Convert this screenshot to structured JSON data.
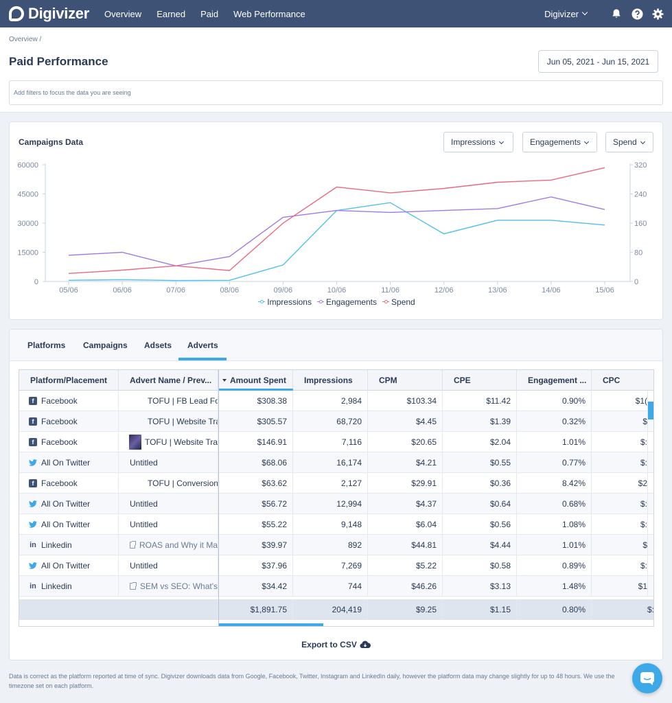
{
  "nav": {
    "brand": "Digivizer",
    "links": [
      "Overview",
      "Earned",
      "Paid",
      "Web Performance"
    ],
    "account": "Digivizer"
  },
  "header": {
    "breadcrumb": "Overview  /",
    "title": "Paid Performance",
    "date_range": "Jun 05, 2021 - Jun 15, 2021",
    "filter_placeholder": "Add filters to focus the data you are seeing"
  },
  "chart_panel": {
    "title": "Campaigns Data",
    "buttons": [
      "Impressions",
      "Engagements",
      "Spend"
    ]
  },
  "colors": {
    "impressions": "#4fc0ea",
    "engagements": "#a07ae6",
    "spend": "#ea6a7e",
    "accent": "#3ea9e8",
    "nav": "#3e5276"
  },
  "chart_data": {
    "type": "line",
    "x": [
      "05/06",
      "06/06",
      "07/06",
      "08/06",
      "09/06",
      "10/06",
      "11/06",
      "12/06",
      "13/06",
      "14/06",
      "15/06"
    ],
    "y_left_ticks": [
      "60000",
      "45000",
      "30000",
      "15000",
      "0"
    ],
    "y_right_ticks": [
      "320",
      "240",
      "160",
      "80",
      "0"
    ],
    "ylim_left": [
      0,
      60000
    ],
    "ylim_right": [
      0,
      320
    ],
    "series": [
      {
        "name": "Impressions",
        "axis": "left",
        "values": [
          600,
          900,
          500,
          600,
          8500,
          36500,
          40500,
          24500,
          31500,
          31500,
          29000
        ]
      },
      {
        "name": "Engagements",
        "axis": "left",
        "values": [
          13500,
          15000,
          8000,
          12800,
          33000,
          36500,
          35500,
          36500,
          37500,
          43500,
          37000
        ]
      },
      {
        "name": "Spend",
        "axis": "right",
        "values": [
          22,
          31,
          43,
          30,
          160,
          259,
          243,
          255,
          272,
          278,
          312
        ]
      }
    ],
    "legend_position": "bottom-center",
    "grid": false
  },
  "table_panel": {
    "tabs": [
      "Platforms",
      "Campaigns",
      "Adsets",
      "Adverts"
    ],
    "active_tab": "Adverts",
    "columns": [
      "Platform/Placement",
      "Advert Name / Prev...",
      "Amount Spent",
      "Impressions",
      "CPM",
      "CPE",
      "Engagement ...",
      "CPC"
    ],
    "rows": [
      {
        "platform": "Facebook",
        "icon": "facebook-icon",
        "name": "TOFU | FB Lead Fo",
        "name_type": "plain",
        "spent": "$308.38",
        "impressions": "2,984",
        "cpm": "$103.34",
        "cpe": "$11.42",
        "eng": "0.90%",
        "cpc": "$1("
      },
      {
        "platform": "Facebook",
        "icon": "facebook-icon",
        "name": "TOFU | Website Tra",
        "name_type": "plain",
        "spent": "$305.57",
        "impressions": "68,720",
        "cpm": "$4.45",
        "cpe": "$1.39",
        "eng": "0.32%",
        "cpc": "$"
      },
      {
        "platform": "Facebook",
        "icon": "facebook-icon",
        "name": "TOFU | Website Tra",
        "name_type": "thumb",
        "spent": "$146.91",
        "impressions": "7,116",
        "cpm": "$20.65",
        "cpe": "$2.04",
        "eng": "1.01%",
        "cpc": "$:"
      },
      {
        "platform": "All On Twitter",
        "icon": "twitter-icon",
        "name": "Untitled",
        "name_type": "left",
        "spent": "$68.06",
        "impressions": "16,174",
        "cpm": "$4.21",
        "cpe": "$0.55",
        "eng": "0.77%",
        "cpc": "$:"
      },
      {
        "platform": "Facebook",
        "icon": "facebook-icon",
        "name": "TOFU | Conversion",
        "name_type": "plain",
        "spent": "$63.62",
        "impressions": "2,127",
        "cpm": "$29.91",
        "cpe": "$0.36",
        "eng": "8.42%",
        "cpc": "$2"
      },
      {
        "platform": "All On Twitter",
        "icon": "twitter-icon",
        "name": "Untitled",
        "name_type": "left",
        "spent": "$56.72",
        "impressions": "12,994",
        "cpm": "$4.37",
        "cpe": "$0.64",
        "eng": "0.68%",
        "cpc": "$:"
      },
      {
        "platform": "All On Twitter",
        "icon": "twitter-icon",
        "name": "Untitled",
        "name_type": "left",
        "spent": "$55.22",
        "impressions": "9,148",
        "cpm": "$6.04",
        "cpe": "$0.56",
        "eng": "1.08%",
        "cpc": "$:"
      },
      {
        "platform": "Linkedin",
        "icon": "linkedin-icon",
        "name": "ROAS and Why it Ma",
        "name_type": "link",
        "spent": "$39.97",
        "impressions": "892",
        "cpm": "$44.81",
        "cpe": "$4.44",
        "eng": "1.01%",
        "cpc": "$"
      },
      {
        "platform": "All On Twitter",
        "icon": "twitter-icon",
        "name": "Untitled",
        "name_type": "left",
        "spent": "$37.96",
        "impressions": "7,269",
        "cpm": "$5.22",
        "cpe": "$0.58",
        "eng": "0.89%",
        "cpc": "$:"
      },
      {
        "platform": "Linkedin",
        "icon": "linkedin-icon",
        "name": "SEM vs SEO: What's",
        "name_type": "link",
        "spent": "$34.42",
        "impressions": "744",
        "cpm": "$46.26",
        "cpe": "$3.13",
        "eng": "1.48%",
        "cpc": "$1"
      }
    ],
    "totals": {
      "spent": "$1,891.75",
      "impressions": "204,419",
      "cpm": "$9.25",
      "cpe": "$1.15",
      "eng": "0.80%",
      "cpc": "$:"
    },
    "export_label": "Export to CSV"
  },
  "footer": {
    "note": "Data is correct as the platform reported at time of sync. Digivizer downloads data from Google, Facebook, Twitter, Instagram and LinkedIn daily, however the platform data may change slightly for up to 48 hours. We use the timezone set on each platform."
  }
}
